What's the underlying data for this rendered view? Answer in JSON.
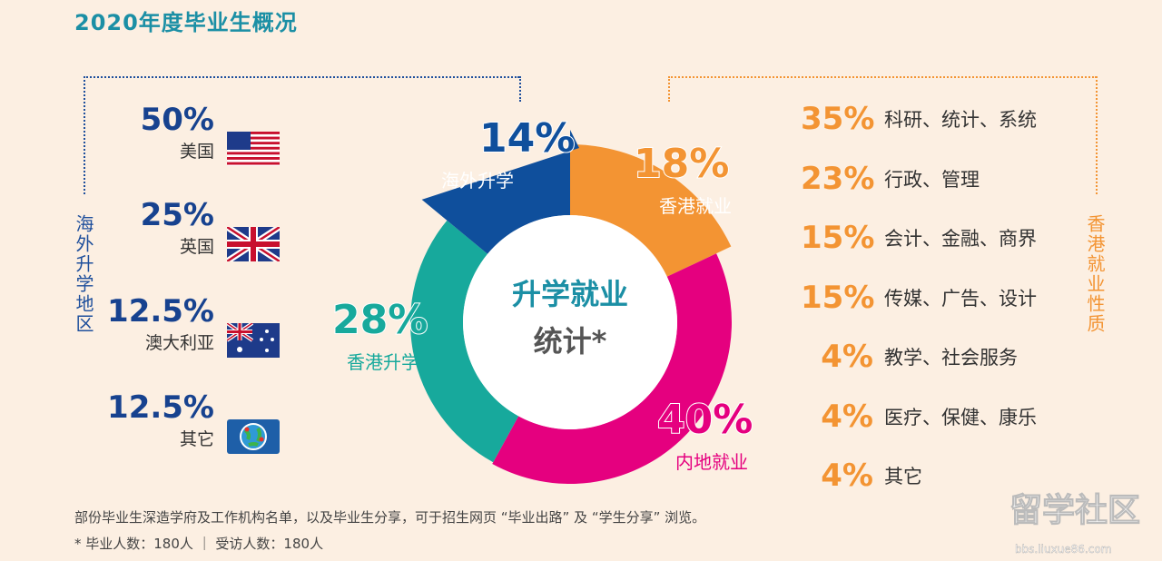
{
  "title": "2020年度毕业生概况",
  "left_label": "海外升学地区",
  "right_label": "香港就业性质",
  "countries": [
    {
      "pct": "50%",
      "name": "美国",
      "flag": "us-flag"
    },
    {
      "pct": "25%",
      "name": "英国",
      "flag": "uk-flag"
    },
    {
      "pct": "12.5%",
      "name": "澳大利亚",
      "flag": "au-flag"
    },
    {
      "pct": "12.5%",
      "name": "其它",
      "flag": "globe"
    }
  ],
  "jobs": [
    {
      "pct": "35%",
      "name": "科研、统计、系统"
    },
    {
      "pct": "23%",
      "name": "行政、管理"
    },
    {
      "pct": "15%",
      "name": "会计、金融、商界"
    },
    {
      "pct": "15%",
      "name": "传媒、广告、设计"
    },
    {
      "pct": "4%",
      "name": "教学、社会服务"
    },
    {
      "pct": "4%",
      "name": "医疗、保健、康乐"
    },
    {
      "pct": "4%",
      "name": "其它"
    }
  ],
  "chart_data": {
    "type": "pie",
    "title_line1": "升学就业",
    "title_line2": "统计*",
    "slices": [
      {
        "label": "香港就业",
        "value": 18,
        "pct": "18%",
        "color": "#f39433"
      },
      {
        "label": "内地就业",
        "value": 40,
        "pct": "40%",
        "color": "#e5007f"
      },
      {
        "label": "香港升学",
        "value": 28,
        "pct": "28%",
        "color": "#17a99c"
      },
      {
        "label": "海外升学",
        "value": 14,
        "pct": "14%",
        "color": "#0f4f9c"
      }
    ]
  },
  "footer": {
    "line1": "部份毕业生深造学府及工作机构名单，以及毕业生分享，可于招生网页 “毕业出路” 及 “学生分享” 浏览。",
    "line2": "* 毕业人数：180人 ｜ 受访人数：180人"
  },
  "watermark": {
    "text": "留学社区",
    "url": "bbs.liuxue86.com"
  }
}
